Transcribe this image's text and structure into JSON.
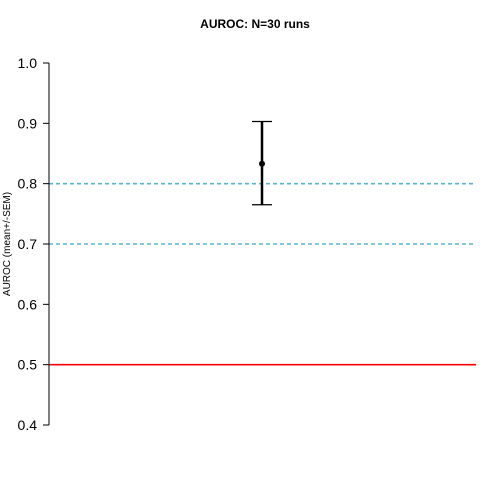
{
  "chart_data": {
    "type": "scatter",
    "title": "AUROC: N=30 runs",
    "xlabel": "",
    "ylabel": "AUROC (mean+/-SEM)",
    "ylim": [
      0.4,
      1.0
    ],
    "yticks": [
      "0.4",
      "0.5",
      "0.6",
      "0.7",
      "0.8",
      "0.9",
      "1.0"
    ],
    "grid": false,
    "points": [
      {
        "mean": 0.833,
        "lower": 0.765,
        "upper": 0.903
      }
    ],
    "reference_lines": [
      {
        "y": 0.5,
        "style": "solid",
        "color": "#ff0000"
      },
      {
        "y": 0.7,
        "style": "dashed",
        "color": "#5ab4d6"
      },
      {
        "y": 0.8,
        "style": "dashed",
        "color": "#5ab4d6"
      }
    ],
    "colors": {
      "point": "#000000",
      "axis": "#000000"
    }
  }
}
